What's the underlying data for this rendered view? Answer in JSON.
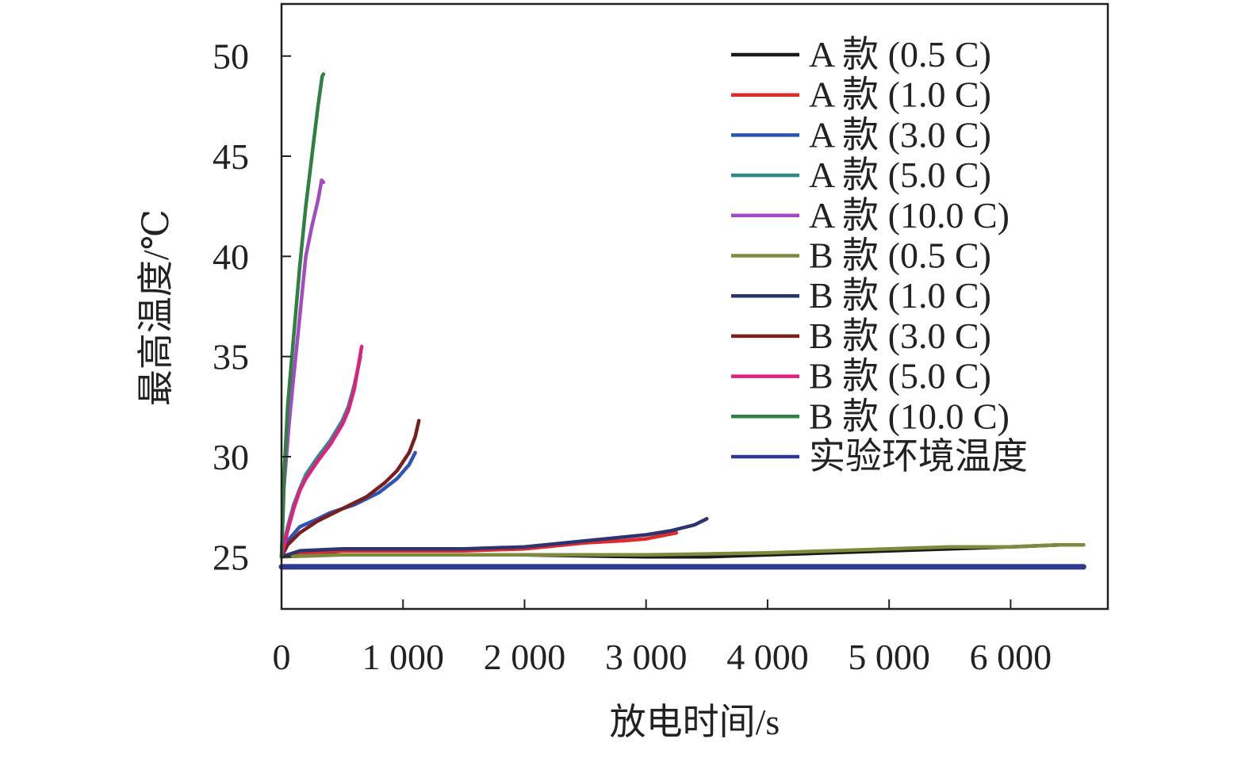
{
  "chart_data": {
    "type": "line",
    "title": "",
    "xlabel": "放电时间/s",
    "ylabel": "最高温度/℃",
    "xlim": [
      0,
      6800
    ],
    "ylim": [
      22.4,
      52.6
    ],
    "xticks": [
      0,
      1000,
      2000,
      3000,
      4000,
      5000,
      6000
    ],
    "xtick_labels": [
      "0",
      "1 000",
      "2 000",
      "3 000",
      "4 000",
      "5 000",
      "6 000"
    ],
    "yticks": [
      25,
      30,
      35,
      40,
      45,
      50
    ],
    "ytick_labels": [
      "25",
      "30",
      "35",
      "40",
      "45",
      "50"
    ],
    "grid": false,
    "legend_position": "top-right",
    "series": [
      {
        "name": "A 款 (0.5 C)",
        "color": "#1a1a1a",
        "x": [
          0,
          300,
          1000,
          2000,
          3000,
          3500,
          4000,
          4500,
          5000,
          5500,
          6000,
          6400,
          6600
        ],
        "y": [
          25.0,
          25.1,
          25.1,
          25.1,
          25.0,
          25.0,
          25.1,
          25.2,
          25.3,
          25.4,
          25.5,
          25.6,
          25.6
        ]
      },
      {
        "name": "A 款 (1.0 C)",
        "color": "#e02b2b",
        "x": [
          0,
          200,
          500,
          1000,
          1500,
          2000,
          2500,
          2800,
          3000,
          3250
        ],
        "y": [
          25.0,
          25.2,
          25.3,
          25.3,
          25.3,
          25.4,
          25.7,
          25.8,
          25.9,
          26.2
        ]
      },
      {
        "name": "A 款 (3.0 C)",
        "color": "#2c55b5",
        "x": [
          0,
          50,
          150,
          300,
          400,
          600,
          800,
          950,
          1050,
          1100
        ],
        "y": [
          25.0,
          25.8,
          26.5,
          26.9,
          27.2,
          27.6,
          28.2,
          28.9,
          29.6,
          30.2
        ]
      },
      {
        "name": "A 款 (5.0 C)",
        "color": "#2f8a8a",
        "x": [
          0,
          50,
          100,
          150,
          200,
          300,
          400,
          500,
          550,
          600,
          650
        ],
        "y": [
          25.0,
          26.5,
          27.6,
          28.4,
          29.1,
          30.0,
          30.8,
          31.8,
          32.5,
          33.6,
          35.0
        ]
      },
      {
        "name": "A 款 (10.0 C)",
        "color": "#a24bc2",
        "x": [
          0,
          20,
          60,
          100,
          150,
          200,
          250,
          300,
          330,
          345
        ],
        "y": [
          25.0,
          28.5,
          31.5,
          34.0,
          37.0,
          40.0,
          41.5,
          42.8,
          43.8,
          43.7
        ]
      },
      {
        "name": "B 款 (0.5 C)",
        "color": "#7e8a3c",
        "x": [
          0,
          500,
          1000,
          2000,
          3000,
          4000,
          4500,
          5000,
          5500,
          6000,
          6400,
          6600
        ],
        "y": [
          25.0,
          25.1,
          25.1,
          25.1,
          25.1,
          25.2,
          25.3,
          25.4,
          25.5,
          25.5,
          25.6,
          25.6
        ]
      },
      {
        "name": "B 款 (1.0 C)",
        "color": "#2e3470",
        "x": [
          0,
          150,
          500,
          1000,
          1500,
          2000,
          2500,
          3000,
          3200,
          3400,
          3500
        ],
        "y": [
          25.0,
          25.3,
          25.4,
          25.4,
          25.4,
          25.5,
          25.8,
          26.1,
          26.3,
          26.6,
          26.9
        ]
      },
      {
        "name": "B 款 (3.0 C)",
        "color": "#7a1f1f",
        "x": [
          0,
          50,
          150,
          300,
          500,
          700,
          850,
          950,
          1050,
          1100,
          1130
        ],
        "y": [
          25.0,
          25.6,
          26.2,
          26.8,
          27.4,
          28.0,
          28.7,
          29.3,
          30.2,
          31.0,
          31.8
        ]
      },
      {
        "name": "B 款 (5.0 C)",
        "color": "#e0207e",
        "x": [
          0,
          50,
          100,
          150,
          200,
          300,
          400,
          500,
          550,
          600,
          660
        ],
        "y": [
          25.0,
          26.3,
          27.4,
          28.3,
          28.9,
          29.8,
          30.6,
          31.6,
          32.3,
          33.4,
          35.5
        ]
      },
      {
        "name": "B 款 (10.0 C)",
        "color": "#2f8041",
        "x": [
          0,
          20,
          50,
          100,
          150,
          200,
          250,
          300,
          335,
          345
        ],
        "y": [
          25.0,
          29.0,
          32.5,
          36.0,
          39.5,
          42.5,
          45.0,
          47.5,
          49.0,
          49.1
        ]
      },
      {
        "name": "实验环境温度",
        "color": "#2f3a8c",
        "x": [
          0,
          1000,
          2000,
          3000,
          4000,
          5000,
          6000,
          6600
        ],
        "y": [
          24.5,
          24.5,
          24.5,
          24.5,
          24.5,
          24.5,
          24.5,
          24.5
        ]
      }
    ]
  }
}
